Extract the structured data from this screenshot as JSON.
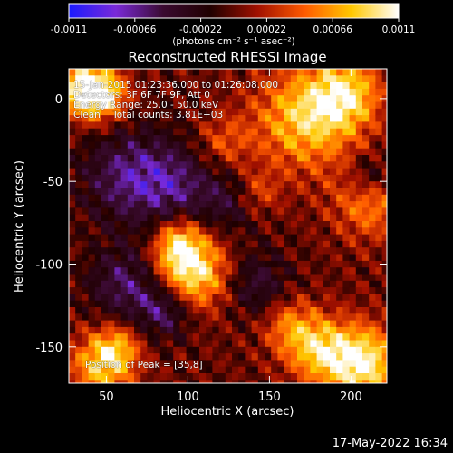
{
  "chart_data": {
    "type": "heatmap",
    "title": "Reconstructed RHESSI Image",
    "xlabel": "Heliocentric X (arcsec)",
    "ylabel": "Heliocentric Y (arcsec)",
    "xlim": [
      27,
      222
    ],
    "ylim": [
      -172,
      18
    ],
    "xticks": [
      50,
      100,
      150,
      200
    ],
    "yticks": [
      0,
      -50,
      -100,
      -150
    ],
    "colorbar": {
      "min": -0.0011,
      "max": 0.0011,
      "ticks": [
        "-0.0011",
        "-0.00066",
        "-0.00022",
        "0.00022",
        "0.00066",
        "0.0011"
      ],
      "units_label": "(photons cm⁻² s⁻¹ asec⁻²)",
      "colors": [
        "#1a1aff",
        "#7a2ad8",
        "#3a0a30",
        "#200000",
        "#a01000",
        "#ff5a00",
        "#ffc800",
        "#ffffff"
      ]
    },
    "info": {
      "time_range": "15-Jan-2015 01:23:36.000 to 01:26:08.000",
      "detectors": "Detectors: 3F 6F 7F 9F, Att 0",
      "energy": "Energy Range: 25.0 - 50.0 keV",
      "method": "Clean    Total counts: 3.81E+03"
    },
    "peak": "Position of Peak = [35,8]",
    "sources": [
      {
        "x": 35,
        "y": 8,
        "amp": 1.0,
        "r": 12
      },
      {
        "x": 48,
        "y": 3,
        "amp": 0.6,
        "r": 10
      },
      {
        "x": 100,
        "y": -103,
        "amp": 0.95,
        "r": 16
      },
      {
        "x": 92,
        "y": -85,
        "amp": 0.6,
        "r": 10
      },
      {
        "x": 170,
        "y": -10,
        "amp": 0.75,
        "r": 22
      },
      {
        "x": 195,
        "y": 5,
        "amp": 0.7,
        "r": 15
      },
      {
        "x": 210,
        "y": -60,
        "amp": 0.55,
        "r": 16
      },
      {
        "x": 205,
        "y": -158,
        "amp": 0.95,
        "r": 16
      },
      {
        "x": 178,
        "y": -150,
        "amp": 0.65,
        "r": 14
      },
      {
        "x": 160,
        "y": -135,
        "amp": 0.45,
        "r": 12
      },
      {
        "x": 45,
        "y": -160,
        "amp": 0.7,
        "r": 14
      },
      {
        "x": 55,
        "y": -148,
        "amp": 0.45,
        "r": 10
      },
      {
        "x": 140,
        "y": -55,
        "amp": 0.4,
        "r": 10
      },
      {
        "x": 120,
        "y": -25,
        "amp": 0.35,
        "r": 12
      }
    ],
    "sinks": [
      {
        "x": 60,
        "y": -45,
        "amp": 0.5,
        "r": 20
      },
      {
        "x": 90,
        "y": -50,
        "amp": 0.45,
        "r": 18
      },
      {
        "x": 60,
        "y": -110,
        "amp": 0.5,
        "r": 16
      },
      {
        "x": 85,
        "y": -125,
        "amp": 0.55,
        "r": 12
      },
      {
        "x": 140,
        "y": -110,
        "amp": 0.4,
        "r": 14
      },
      {
        "x": 210,
        "y": -45,
        "amp": 0.45,
        "r": 10
      },
      {
        "x": 125,
        "y": -60,
        "amp": 0.35,
        "r": 14
      }
    ]
  },
  "footer": {
    "timestamp": "17-May-2022 16:34"
  }
}
